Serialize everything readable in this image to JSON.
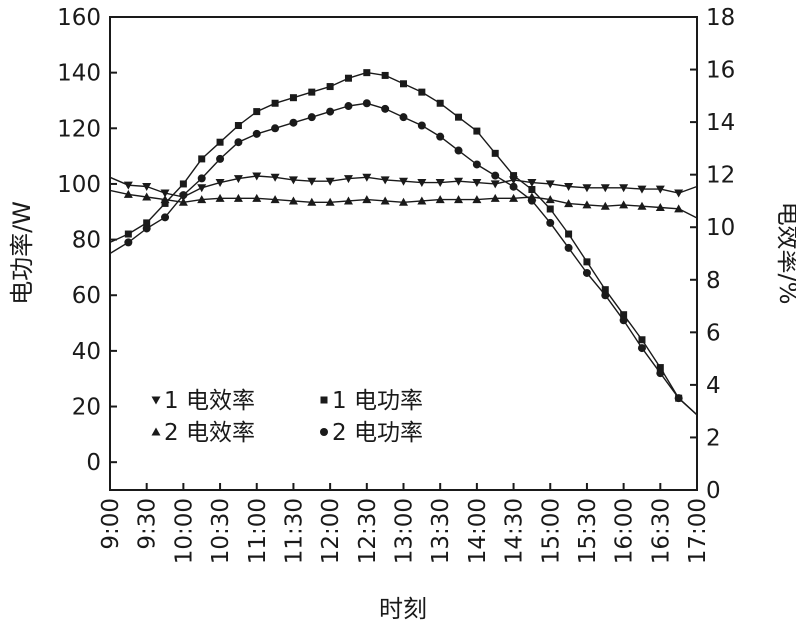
{
  "chart_data": {
    "type": "line",
    "title": "",
    "xlabel": "时刻",
    "ylabel_left": "电功率/W",
    "ylabel_right": "电效率/%",
    "x_ticks": [
      "9:00",
      "9:30",
      "10:00",
      "10:30",
      "11:00",
      "11:30",
      "12:00",
      "12:30",
      "13:00",
      "13:30",
      "14:00",
      "14:30",
      "15:00",
      "15:30",
      "16:00",
      "16:30",
      "17:00"
    ],
    "ylim_left": [
      -10,
      160
    ],
    "yticks_left": [
      0,
      20,
      40,
      60,
      80,
      100,
      120,
      140,
      160
    ],
    "ylim_right": [
      0,
      18
    ],
    "yticks_right": [
      0,
      2,
      4,
      6,
      8,
      10,
      12,
      14,
      16,
      18
    ],
    "x_unit": "hours",
    "grid": false,
    "legend_position": "bottom-left",
    "series": [
      {
        "name": "1 电效率",
        "axis": "right",
        "marker": "triangle-down",
        "x": [
          9.0,
          9.25,
          9.5,
          9.75,
          10.0,
          10.25,
          10.5,
          10.75,
          11.0,
          11.25,
          11.5,
          11.75,
          12.0,
          12.25,
          12.5,
          12.75,
          13.0,
          13.25,
          13.5,
          13.75,
          14.0,
          14.25,
          14.5,
          14.75,
          15.0,
          15.25,
          15.5,
          15.75,
          16.0,
          16.25,
          16.5,
          16.75,
          17.0
        ],
        "values": [
          11.9,
          11.6,
          11.55,
          11.3,
          11.15,
          11.5,
          11.7,
          11.85,
          11.95,
          11.9,
          11.8,
          11.75,
          11.75,
          11.85,
          11.9,
          11.8,
          11.75,
          11.7,
          11.7,
          11.75,
          11.7,
          11.65,
          11.8,
          11.7,
          11.65,
          11.55,
          11.5,
          11.5,
          11.5,
          11.45,
          11.45,
          11.3,
          11.55
        ]
      },
      {
        "name": "2 电效率",
        "axis": "right",
        "marker": "triangle-up",
        "x": [
          9.0,
          9.25,
          9.5,
          9.75,
          10.0,
          10.25,
          10.5,
          10.75,
          11.0,
          11.25,
          11.5,
          11.75,
          12.0,
          12.25,
          12.5,
          12.75,
          13.0,
          13.25,
          13.5,
          13.75,
          14.0,
          14.25,
          14.5,
          14.75,
          15.0,
          15.25,
          15.5,
          15.75,
          16.0,
          16.25,
          16.5,
          16.75,
          17.0
        ],
        "values": [
          11.4,
          11.25,
          11.15,
          11.05,
          10.95,
          11.05,
          11.1,
          11.1,
          11.1,
          11.05,
          11.0,
          10.95,
          10.95,
          11.0,
          11.05,
          11.0,
          10.95,
          11.0,
          11.05,
          11.05,
          11.05,
          11.1,
          11.1,
          11.15,
          11.05,
          10.9,
          10.85,
          10.8,
          10.85,
          10.8,
          10.75,
          10.7,
          10.35
        ]
      },
      {
        "name": "1 电功率",
        "axis": "left",
        "marker": "square",
        "x": [
          9.0,
          9.25,
          9.5,
          9.75,
          10.0,
          10.25,
          10.5,
          10.75,
          11.0,
          11.25,
          11.5,
          11.75,
          12.0,
          12.25,
          12.5,
          12.75,
          13.0,
          13.25,
          13.5,
          13.75,
          14.0,
          14.25,
          14.5,
          14.75,
          15.0,
          15.25,
          15.5,
          15.75,
          16.0,
          16.25,
          16.5,
          16.75,
          17.0
        ],
        "values": [
          79,
          82,
          86,
          93,
          100,
          109,
          115,
          121,
          126,
          129,
          131,
          133,
          135,
          138,
          140,
          139,
          136,
          133,
          129,
          124,
          119,
          111,
          103,
          98,
          91,
          82,
          72,
          62,
          53,
          44,
          34,
          23,
          17
        ]
      },
      {
        "name": "2 电功率",
        "axis": "left",
        "marker": "circle",
        "x": [
          9.0,
          9.25,
          9.5,
          9.75,
          10.0,
          10.25,
          10.5,
          10.75,
          11.0,
          11.25,
          11.5,
          11.75,
          12.0,
          12.25,
          12.5,
          12.75,
          13.0,
          13.25,
          13.5,
          13.75,
          14.0,
          14.25,
          14.5,
          14.75,
          15.0,
          15.25,
          15.5,
          15.75,
          16.0,
          16.25,
          16.5,
          16.75,
          17.0
        ],
        "values": [
          75,
          79,
          84,
          88,
          96,
          102,
          109,
          115,
          118,
          120,
          122,
          124,
          126,
          128,
          129,
          127,
          124,
          121,
          117,
          112,
          107,
          103,
          99,
          94,
          86,
          77,
          68,
          60,
          51,
          41,
          32,
          23,
          17
        ]
      }
    ]
  }
}
